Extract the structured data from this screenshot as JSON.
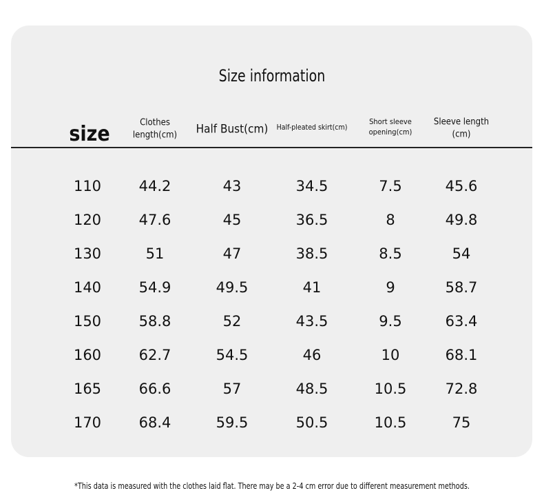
{
  "title": "Size information",
  "table": {
    "headers": [
      "size",
      "Clothes\nlength(cm)",
      "Half Bust(cm)",
      "Half-pleated skirt(cm)",
      "Short sleeve\nopening(cm)",
      "Sleeve length\n(cm)"
    ],
    "rows": [
      [
        110,
        44.2,
        43,
        34.5,
        7.5,
        45.6
      ],
      [
        120,
        47.6,
        45,
        36.5,
        8,
        49.8
      ],
      [
        130,
        51,
        47,
        38.5,
        8.5,
        54
      ],
      [
        140,
        54.9,
        49.5,
        41,
        9,
        58.7
      ],
      [
        150,
        58.8,
        52,
        43.5,
        9.5,
        63.4
      ],
      [
        160,
        62.7,
        54.5,
        46,
        10,
        68.1
      ],
      [
        165,
        66.6,
        57,
        48.5,
        10.5,
        72.8
      ],
      [
        170,
        68.4,
        59.5,
        50.5,
        10.5,
        75
      ]
    ]
  },
  "footnote": "*This data is measured with the clothes laid flat. There may be a 2-4 cm error due to different measurement methods."
}
